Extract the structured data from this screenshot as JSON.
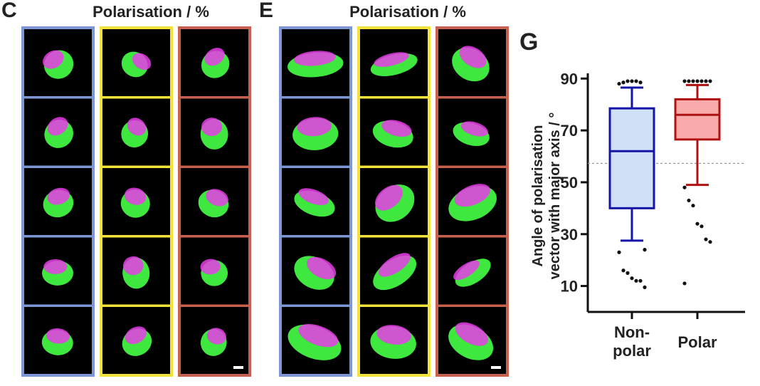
{
  "panels": {
    "c": {
      "letter": "C",
      "axis_title": "Polarisation / %"
    },
    "e": {
      "letter": "E",
      "axis_title": "Polarisation / %"
    }
  },
  "chart_data": {
    "type": "box",
    "letter": "G",
    "ylabel": [
      "Angle of polarisation",
      "vector with major axis / °"
    ],
    "categories": [
      "Non-\npolar",
      "Polar"
    ],
    "ylim": [
      0,
      92
    ],
    "yticks": [
      10,
      30,
      50,
      70,
      90
    ],
    "reference_line": 57.3,
    "series": [
      {
        "color": "#1515a8",
        "fill": "#cfe0f7",
        "whisker_low": 27.5,
        "q1": 40,
        "median": 62,
        "q3": 78.5,
        "whisker_high": 86.5,
        "outliers": [
          88,
          88.5,
          89,
          89,
          89,
          88.5,
          24,
          23,
          16,
          15,
          13,
          12,
          12,
          9.5
        ]
      },
      {
        "color": "#b01212",
        "fill": "#f9abab",
        "whisker_low": 49,
        "q1": 66.5,
        "median": 76,
        "q3": 82,
        "whisker_high": 87.5,
        "outliers": [
          89,
          89,
          89,
          89,
          89,
          89,
          89,
          48,
          43,
          41,
          34,
          33,
          28,
          27,
          11
        ]
      }
    ]
  }
}
